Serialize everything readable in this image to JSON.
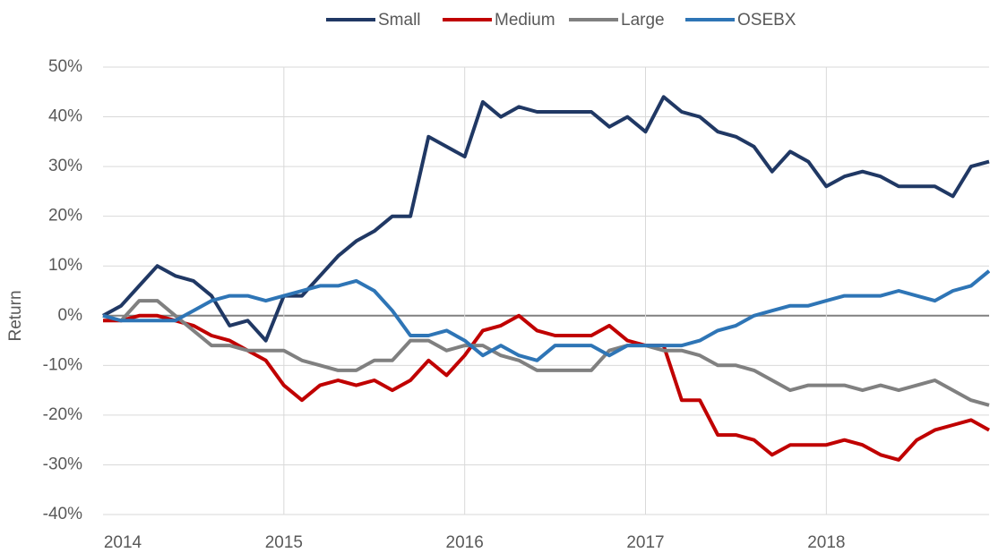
{
  "chart_data": {
    "type": "line",
    "y_label": "Return",
    "x": [
      2014.0,
      2014.1,
      2014.2,
      2014.3,
      2014.4,
      2014.5,
      2014.6,
      2014.7,
      2014.8,
      2014.9,
      2015.0,
      2015.1,
      2015.2,
      2015.3,
      2015.4,
      2015.5,
      2015.6,
      2015.7,
      2015.8,
      2015.9,
      2016.0,
      2016.1,
      2016.2,
      2016.3,
      2016.4,
      2016.5,
      2016.6,
      2016.7,
      2016.8,
      2016.9,
      2017.0,
      2017.1,
      2017.2,
      2017.3,
      2017.4,
      2017.5,
      2017.6,
      2017.7,
      2017.8,
      2017.9,
      2018.0,
      2018.1,
      2018.2,
      2018.3,
      2018.4,
      2018.5,
      2018.6,
      2018.7,
      2018.8,
      2018.9
    ],
    "series": [
      {
        "name": "Small",
        "color": "#203864",
        "values": [
          0,
          2,
          6,
          10,
          8,
          7,
          4,
          -2,
          -1,
          -5,
          4,
          4,
          8,
          12,
          15,
          17,
          20,
          20,
          36,
          34,
          32,
          43,
          40,
          42,
          41,
          41,
          41,
          41,
          38,
          40,
          37,
          44,
          41,
          40,
          37,
          36,
          34,
          29,
          33,
          31,
          26,
          28,
          29,
          28,
          26,
          26,
          26,
          24,
          30,
          31
        ]
      },
      {
        "name": "Medium",
        "color": "#c00000",
        "values": [
          -1,
          -1,
          0,
          0,
          -1,
          -2,
          -4,
          -5,
          -7,
          -9,
          -14,
          -17,
          -14,
          -13,
          -14,
          -13,
          -15,
          -13,
          -9,
          -12,
          -8,
          -3,
          -2,
          0,
          -3,
          -4,
          -4,
          -4,
          -2,
          -5,
          -6,
          -6,
          -17,
          -17,
          -24,
          -24,
          -25,
          -28,
          -26,
          -26,
          -26,
          -25,
          -26,
          -28,
          -29,
          -25,
          -23,
          -22,
          -21,
          -23
        ]
      },
      {
        "name": "Large",
        "color": "#808080",
        "values": [
          0,
          -1,
          3,
          3,
          0,
          -3,
          -6,
          -6,
          -7,
          -7,
          -7,
          -9,
          -10,
          -11,
          -11,
          -9,
          -9,
          -5,
          -5,
          -7,
          -6,
          -6,
          -8,
          -9,
          -11,
          -11,
          -11,
          -11,
          -7,
          -6,
          -6,
          -7,
          -7,
          -8,
          -10,
          -10,
          -11,
          -13,
          -15,
          -14,
          -14,
          -14,
          -15,
          -14,
          -15,
          -14,
          -13,
          -15,
          -17,
          -18
        ]
      },
      {
        "name": "OSEBX",
        "color": "#2e75b6",
        "values": [
          0,
          -1,
          -1,
          -1,
          -1,
          1,
          3,
          4,
          4,
          3,
          4,
          5,
          6,
          6,
          7,
          5,
          1,
          -4,
          -4,
          -3,
          -5,
          -8,
          -6,
          -8,
          -9,
          -6,
          -6,
          -6,
          -8,
          -6,
          -6,
          -6,
          -6,
          -5,
          -3,
          -2,
          0,
          1,
          2,
          2,
          3,
          4,
          4,
          4,
          5,
          4,
          3,
          5,
          6,
          9
        ]
      }
    ],
    "xlim": [
      2014,
      2018.9
    ],
    "xticks": [
      2014,
      2015,
      2016,
      2017,
      2018
    ],
    "ylim": [
      -40,
      50
    ],
    "yticks": [
      {
        "value": -40,
        "label": "-40%"
      },
      {
        "value": -30,
        "label": "-30%"
      },
      {
        "value": -20,
        "label": "-20%"
      },
      {
        "value": -10,
        "label": "-10%"
      },
      {
        "value": 0,
        "label": "0%"
      },
      {
        "value": 10,
        "label": "10%"
      },
      {
        "value": 20,
        "label": "20%"
      },
      {
        "value": 30,
        "label": "30%"
      },
      {
        "value": 40,
        "label": "40%"
      },
      {
        "value": 50,
        "label": "50%"
      }
    ],
    "grid": true,
    "legend": "top"
  }
}
